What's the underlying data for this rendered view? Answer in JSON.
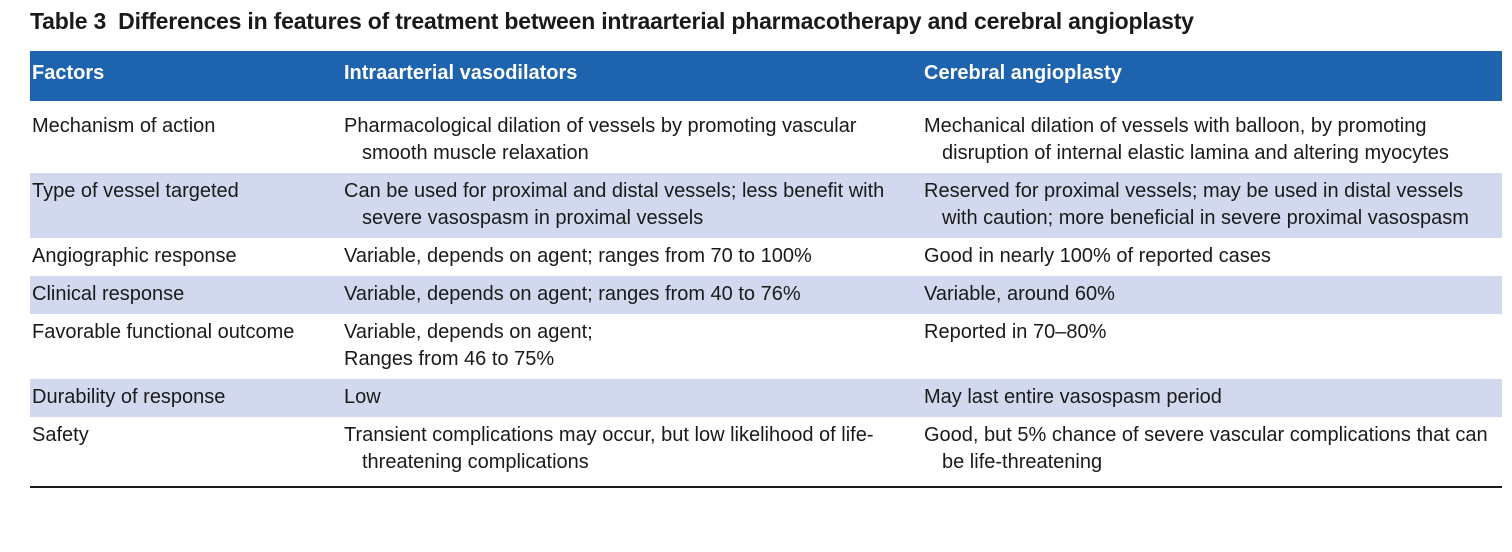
{
  "table": {
    "label": "Table 3",
    "title": "Differences in features of treatment between intraarterial pharmacotherapy and cerebral angioplasty",
    "headers": [
      "Factors",
      "Intraarterial vasodilators",
      "Cerebral angioplasty"
    ],
    "rows": [
      {
        "factor": "Mechanism of action",
        "vasodilators": "Pharmacological dilation of vessels by promoting vascular smooth muscle relaxation",
        "angioplasty": "Mechanical dilation of vessels with balloon, by promoting disruption of internal elastic lamina and altering myocytes"
      },
      {
        "factor": "Type of vessel targeted",
        "vasodilators": "Can be used for proximal and distal vessels; less benefit with severe vasospasm in proximal vessels",
        "angioplasty": "Reserved for proximal vessels; may be used in distal vessels with caution; more beneficial in severe proximal vasospasm"
      },
      {
        "factor": "Angiographic response",
        "vasodilators": "Variable, depends on agent; ranges from 70 to 100%",
        "angioplasty": "Good in nearly 100% of reported cases"
      },
      {
        "factor": "Clinical response",
        "vasodilators": "Variable, depends on agent; ranges from 40 to 76%",
        "angioplasty": "Variable, around 60%"
      },
      {
        "factor": "Favorable functional outcome",
        "vasodilators": "Variable, depends on agent;",
        "vasodilators_line2": "Ranges from 46 to 75%",
        "angioplasty": "Reported in 70–80%"
      },
      {
        "factor": "Durability of response",
        "vasodilators": "Low",
        "angioplasty": "May last entire vasospasm period"
      },
      {
        "factor": "Safety",
        "vasodilators": "Transient complications may occur, but low likelihood of life-threatening complications",
        "angioplasty": "Good, but 5% chance of severe vascular complications that can be life-threatening"
      }
    ]
  }
}
